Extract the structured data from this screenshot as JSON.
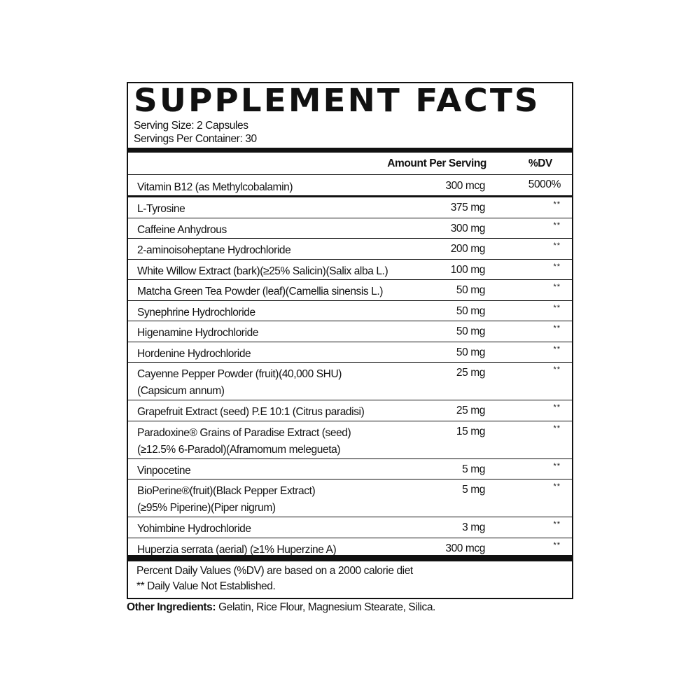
{
  "title": "SUPPLEMENT FACTS",
  "serving_size": "Serving Size: 2 Capsules",
  "servings_per_container": "Servings Per Container: 30",
  "header": {
    "amount": "Amount Per Serving",
    "dv": "%DV"
  },
  "vitamin": {
    "name": "Vitamin B12 (as Methylcobalamin)",
    "amount": "300 mcg",
    "dv": "5000%"
  },
  "ingredients": [
    {
      "lines": [
        "L-Tyrosine"
      ],
      "amount": "375 mg",
      "dv": "**"
    },
    {
      "lines": [
        "Caffeine Anhydrous"
      ],
      "amount": "300 mg",
      "dv": "**"
    },
    {
      "lines": [
        "2-aminoisoheptane Hydrochloride"
      ],
      "amount": "200 mg",
      "dv": "**"
    },
    {
      "lines": [
        "White Willow Extract (bark)(≥25% Salicin)(Salix alba L.)"
      ],
      "amount": "100 mg",
      "dv": "**"
    },
    {
      "lines": [
        "Matcha Green Tea Powder (leaf)(Camellia sinensis L.)"
      ],
      "amount": "50 mg",
      "dv": "**"
    },
    {
      "lines": [
        "Synephrine Hydrochloride"
      ],
      "amount": "50 mg",
      "dv": "**"
    },
    {
      "lines": [
        "Higenamine Hydrochloride"
      ],
      "amount": "50 mg",
      "dv": "**"
    },
    {
      "lines": [
        "Hordenine Hydrochloride"
      ],
      "amount": "50 mg",
      "dv": "**"
    },
    {
      "lines": [
        "Cayenne Pepper Powder (fruit)(40,000 SHU)",
        "(Capsicum annum)"
      ],
      "amount": "25 mg",
      "dv": "**"
    },
    {
      "lines": [
        "Grapefruit Extract (seed) P.E 10:1 (Citrus paradisi)"
      ],
      "amount": "25 mg",
      "dv": "**"
    },
    {
      "lines": [
        "Paradoxine® Grains of Paradise Extract (seed)",
        "(≥12.5% 6-Paradol)(Aframomum melegueta)"
      ],
      "amount": "15 mg",
      "dv": "**"
    },
    {
      "lines": [
        "Vinpocetine"
      ],
      "amount": "5 mg",
      "dv": "**"
    },
    {
      "lines": [
        "BioPerine®(fruit)(Black Pepper Extract)",
        "(≥95% Piperine)(Piper nigrum)"
      ],
      "amount": "5 mg",
      "dv": "**"
    },
    {
      "lines": [
        "Yohimbine Hydrochloride"
      ],
      "amount": "3 mg",
      "dv": "**"
    },
    {
      "lines": [
        "Huperzia serrata (aerial) (≥1% Huperzine A)"
      ],
      "amount": "300 mcg",
      "dv": "**"
    }
  ],
  "footer": {
    "line1": "Percent Daily Values (%DV) are  based on a 2000 calorie diet",
    "line2": "** Daily Value Not Established."
  },
  "other_ingredients": {
    "label": "Other Ingredients:",
    "value": " Gelatin, Rice Flour, Magnesium Stearate, Silica."
  }
}
